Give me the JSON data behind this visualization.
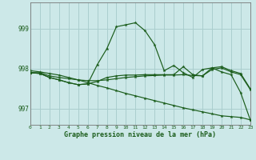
{
  "background_color": "#cce8e8",
  "grid_color": "#aacece",
  "line_color": "#1a5c1a",
  "xlabel": "Graphe pression niveau de la mer (hPa)",
  "xlim": [
    0,
    23
  ],
  "ylim": [
    996.6,
    999.65
  ],
  "yticks": [
    997,
    998,
    999
  ],
  "xticks": [
    0,
    1,
    2,
    3,
    4,
    5,
    6,
    7,
    8,
    9,
    10,
    11,
    12,
    13,
    14,
    15,
    16,
    17,
    18,
    19,
    20,
    21,
    22,
    23
  ],
  "series": [
    {
      "x": [
        0,
        1,
        2,
        3,
        4,
        5,
        6,
        7,
        8,
        9,
        10,
        11,
        12,
        13,
        14,
        15,
        16,
        17,
        18,
        19,
        20,
        21,
        22,
        23
      ],
      "y": [
        997.9,
        997.9,
        997.82,
        997.78,
        997.75,
        997.72,
        997.7,
        997.7,
        997.72,
        997.75,
        997.78,
        997.8,
        997.82,
        997.83,
        997.84,
        997.84,
        997.85,
        997.83,
        997.82,
        997.98,
        998.02,
        997.92,
        997.85,
        997.48
      ]
    },
    {
      "x": [
        0,
        1,
        2,
        3,
        4,
        5,
        6,
        7,
        8,
        9,
        10,
        11,
        12,
        13,
        14,
        15,
        16,
        17,
        18,
        19,
        20,
        21,
        22,
        23
      ],
      "y": [
        997.9,
        997.88,
        997.78,
        997.72,
        997.65,
        997.6,
        997.62,
        998.1,
        998.5,
        999.05,
        999.1,
        999.15,
        998.95,
        998.6,
        997.95,
        998.08,
        997.9,
        997.78,
        997.98,
        998.02,
        997.92,
        997.85,
        997.4,
        996.72
      ]
    },
    {
      "x": [
        0,
        1,
        2,
        3,
        4,
        5,
        6,
        7,
        8,
        9,
        10,
        11,
        12,
        13,
        14,
        15,
        16,
        17,
        18,
        19,
        20,
        21,
        22,
        23
      ],
      "y": [
        997.9,
        997.88,
        997.78,
        997.72,
        997.65,
        997.6,
        997.62,
        997.68,
        997.78,
        997.82,
        997.84,
        997.84,
        997.85,
        997.85,
        997.85,
        997.85,
        998.05,
        997.85,
        997.82,
        998.02,
        998.05,
        997.95,
        997.88,
        997.5
      ]
    },
    {
      "x": [
        0,
        1,
        2,
        3,
        4,
        5,
        6,
        7,
        8,
        9,
        10,
        11,
        12,
        13,
        14,
        15,
        16,
        17,
        18,
        19,
        20,
        21,
        22,
        23
      ],
      "y": [
        997.95,
        997.92,
        997.88,
        997.84,
        997.78,
        997.72,
        997.65,
        997.58,
        997.52,
        997.45,
        997.38,
        997.32,
        997.26,
        997.2,
        997.14,
        997.08,
        997.02,
        996.97,
        996.92,
        996.87,
        996.82,
        996.8,
        996.78,
        996.72
      ]
    }
  ]
}
